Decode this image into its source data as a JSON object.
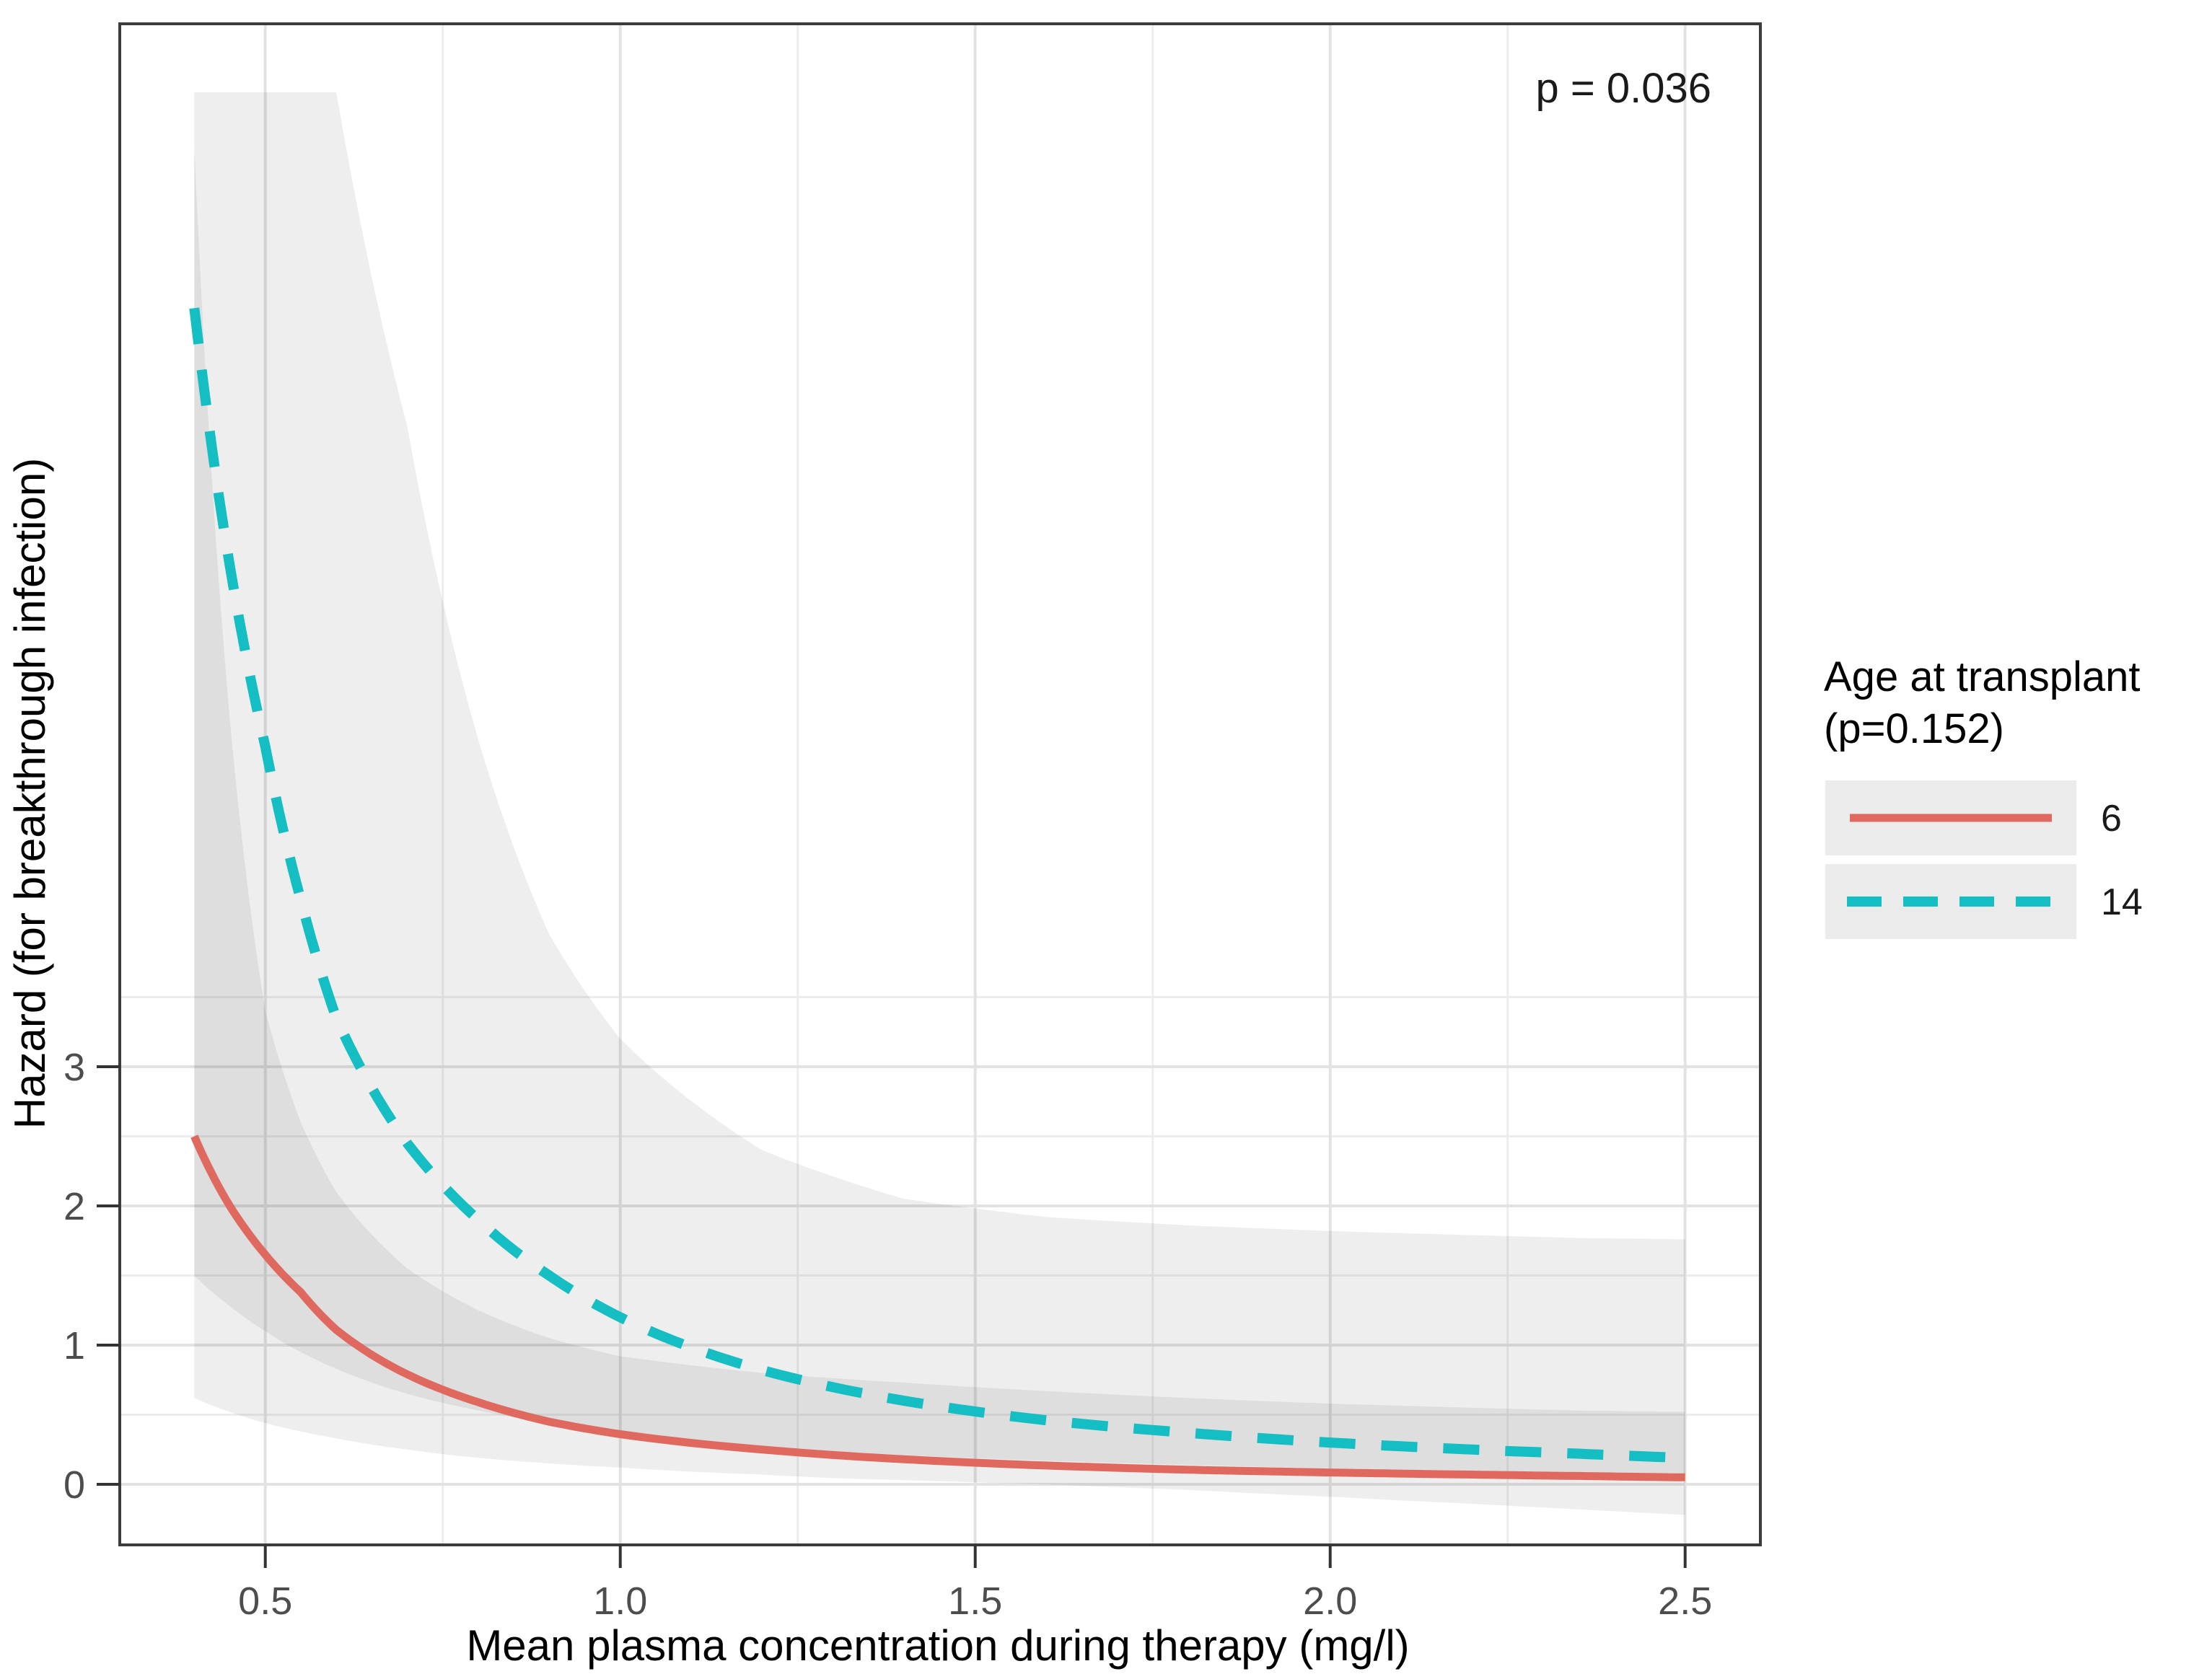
{
  "chart_data": {
    "type": "line",
    "title": "",
    "xlabel": "Mean plasma concentration during therapy (mg/l)",
    "ylabel": "Hazard (for breakthrough infection)",
    "annotation": "p = 0.036",
    "xlim": [
      0.295,
      2.606
    ],
    "ylim": [
      -0.435,
      10.49
    ],
    "grid": "on",
    "legend_position": "right",
    "x": [
      0.4,
      0.45,
      0.5,
      0.55,
      0.6,
      0.7,
      0.8,
      0.9,
      1.0,
      1.2,
      1.4,
      1.6,
      1.8,
      2.0,
      2.2,
      2.35,
      2.5
    ],
    "series": [
      {
        "name": "6",
        "style": "solid",
        "color": "#E0695F",
        "values": [
          2.5,
          2.0,
          1.65,
          1.38,
          1.11,
          0.79,
          0.59,
          0.45,
          0.36,
          0.25,
          0.18,
          0.135,
          0.105,
          0.085,
          0.07,
          0.06,
          0.05
        ],
        "ci_lower": [
          0.62,
          0.52,
          0.44,
          0.38,
          0.33,
          0.25,
          0.19,
          0.15,
          0.12,
          0.07,
          0.03,
          0.0,
          -0.04,
          -0.09,
          -0.14,
          -0.18,
          -0.22
        ],
        "ci_upper": [
          9.6,
          5.5,
          3.4,
          2.6,
          2.1,
          1.55,
          1.25,
          1.05,
          0.92,
          0.8,
          0.73,
          0.67,
          0.62,
          0.58,
          0.55,
          0.53,
          0.52
        ]
      },
      {
        "name": "14",
        "style": "dashed",
        "color": "#14BEC3",
        "values": [
          8.45,
          6.6,
          5.3,
          4.2,
          3.35,
          2.45,
          1.9,
          1.5,
          1.2,
          0.82,
          0.6,
          0.46,
          0.37,
          0.3,
          0.25,
          0.22,
          0.19
        ],
        "ci_lower": [
          1.5,
          1.28,
          1.1,
          0.95,
          0.83,
          0.65,
          0.53,
          0.44,
          0.37,
          0.27,
          0.21,
          0.17,
          0.14,
          0.115,
          0.1,
          0.09,
          0.08
        ],
        "ci_upper": [
          10.0,
          10.0,
          10.0,
          10.0,
          10.0,
          7.6,
          5.35,
          3.95,
          3.2,
          2.4,
          2.05,
          1.92,
          1.86,
          1.82,
          1.79,
          1.77,
          1.76
        ]
      }
    ],
    "x_ticks": [
      {
        "v": 0.5,
        "label": "0.5"
      },
      {
        "v": 1.0,
        "label": "1.0"
      },
      {
        "v": 1.5,
        "label": "1.5"
      },
      {
        "v": 2.0,
        "label": "2.0"
      },
      {
        "v": 2.5,
        "label": "2.5"
      }
    ],
    "y_ticks": [
      {
        "v": 0,
        "label": "0"
      },
      {
        "v": 1,
        "label": "1"
      },
      {
        "v": 2,
        "label": "2"
      },
      {
        "v": 3,
        "label": "3"
      }
    ],
    "x_minor": [
      0.75,
      1.25,
      1.75,
      2.25
    ],
    "y_minor": [
      0.5,
      1.5,
      2.5,
      3.5
    ]
  },
  "legend": {
    "title_line1": "Age at transplant",
    "title_line2": "(p=0.152)",
    "entries": [
      {
        "label": "6"
      },
      {
        "label": "14"
      }
    ]
  },
  "colors": {
    "background": "#ffffff",
    "panel_border": "#3c3c3c",
    "grid_major": "#e2e2e2",
    "grid_minor": "#ededed",
    "ribbon": "rgba(55,55,55,0.085)",
    "tick_mark": "#333333",
    "legend_key_bg": "#ebebeb",
    "series_red": "#E0695F",
    "series_teal": "#14BEC3"
  }
}
